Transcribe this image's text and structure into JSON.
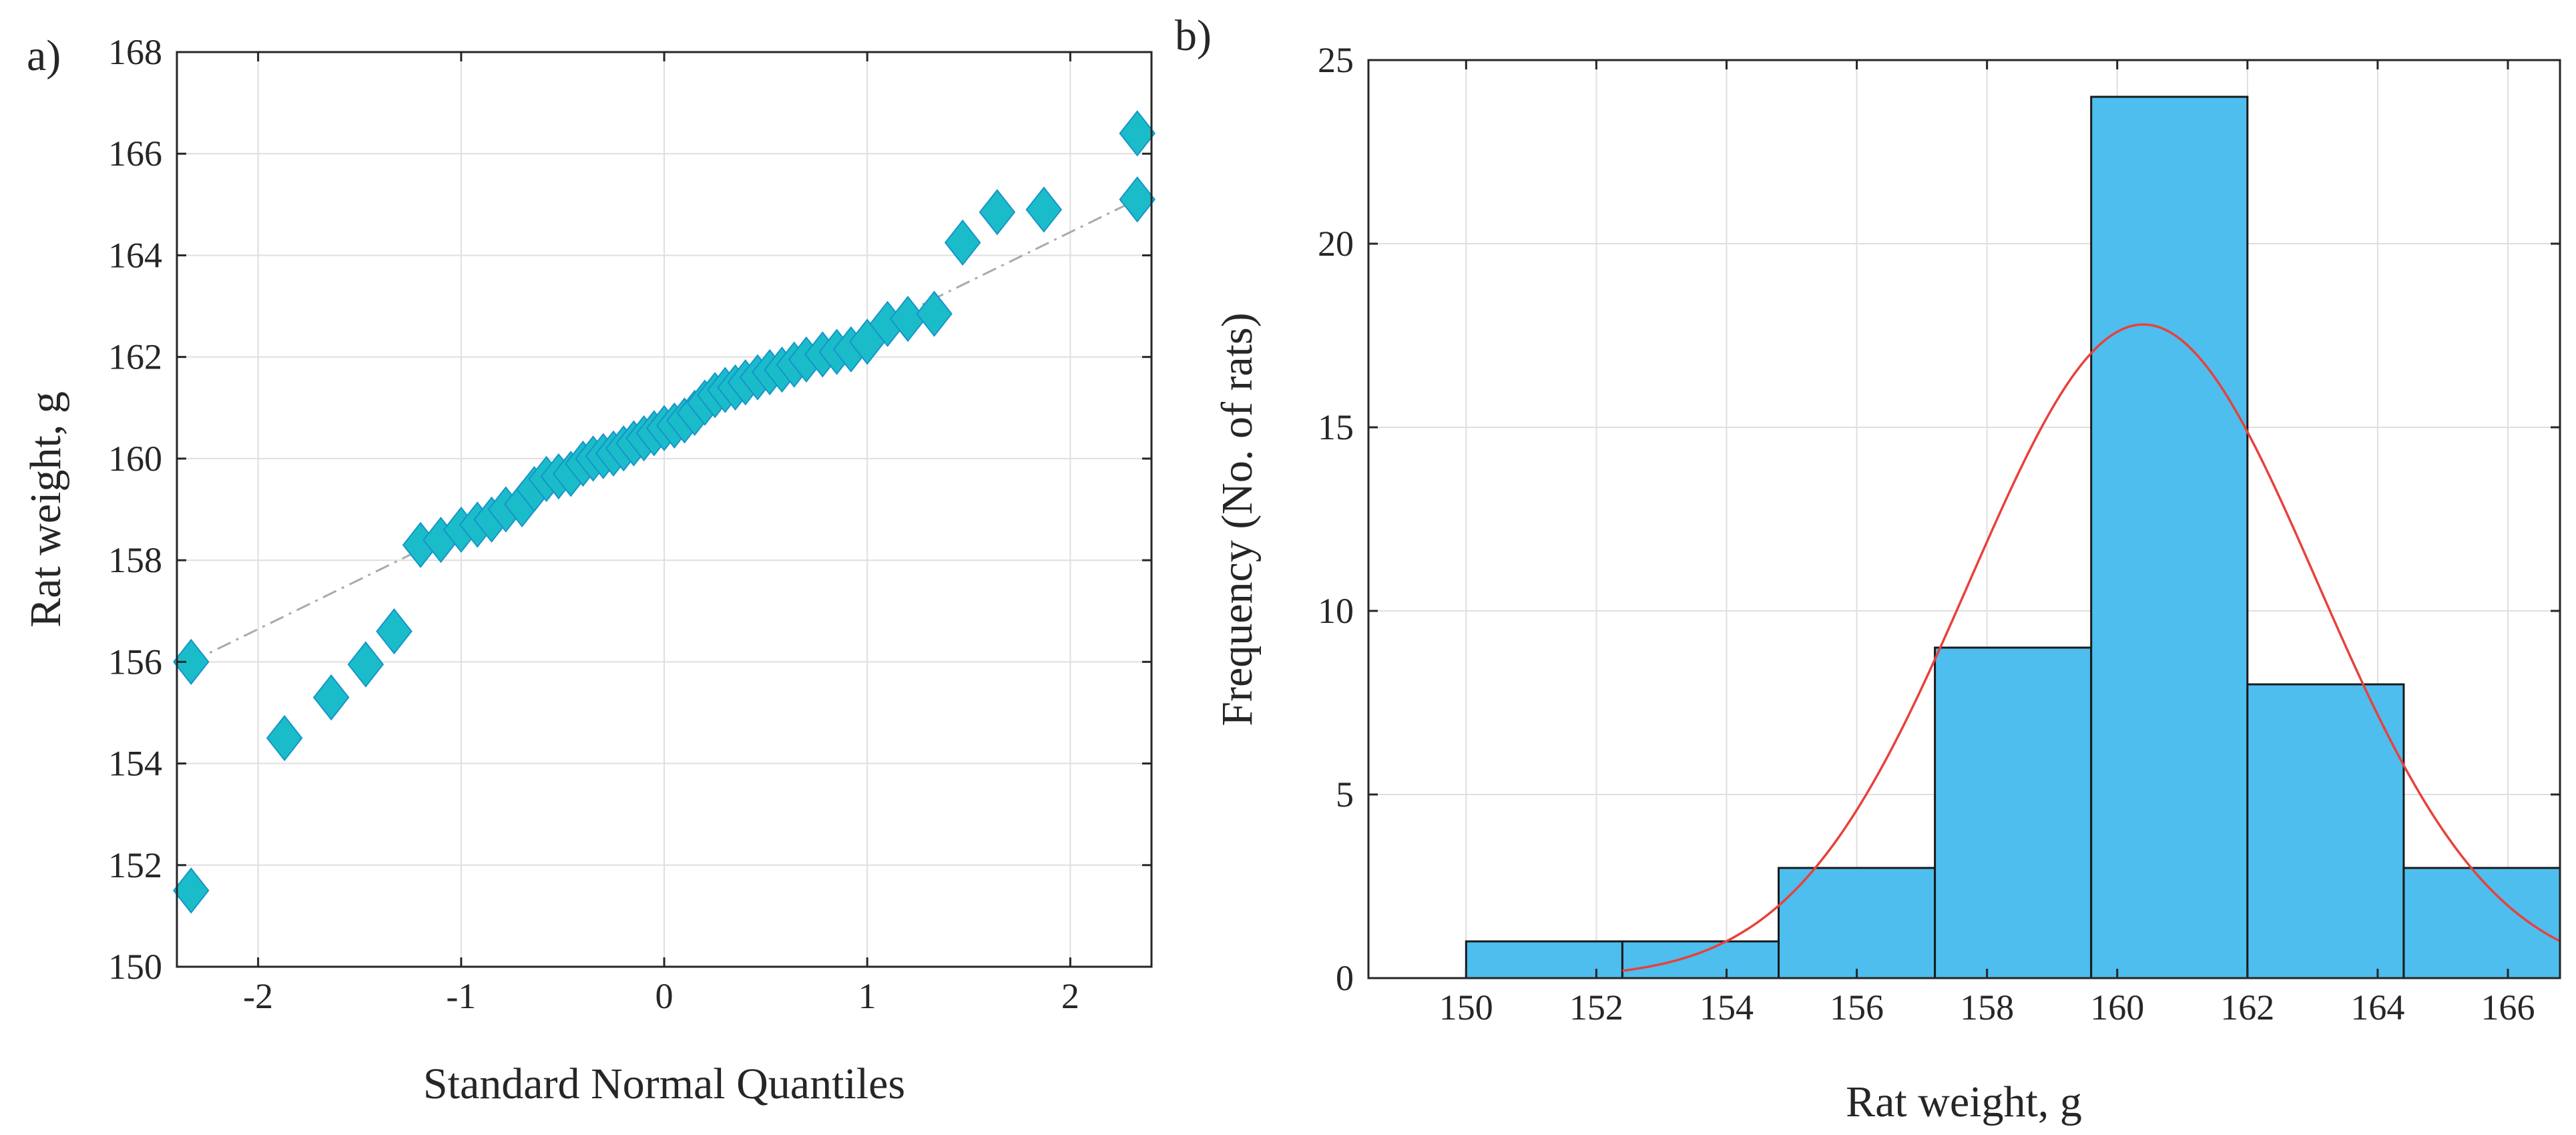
{
  "chart_data": [
    {
      "type": "scatter",
      "panel_label": "a)",
      "xlabel": "Standard Normal Quantiles",
      "ylabel": "Rat weight, g",
      "xlim": [
        -2.4,
        2.4
      ],
      "ylim": [
        150,
        168
      ],
      "xticks": [
        -2,
        -1,
        0,
        1,
        2
      ],
      "xtick_labels": [
        "-2",
        "-1",
        "0",
        "1",
        "2"
      ],
      "yticks": [
        150,
        152,
        154,
        156,
        158,
        160,
        162,
        164,
        166,
        168
      ],
      "ytick_labels": [
        "150",
        "152",
        "154",
        "156",
        "158",
        "160",
        "162",
        "164",
        "166",
        "168"
      ],
      "grid": true,
      "marker": "diamond",
      "marker_color": "#1ABCC9",
      "reference_line": {
        "x": [
          -2.33,
          2.33
        ],
        "y": [
          156.0,
          165.1
        ],
        "style": "dash-dot",
        "color": "#AAAAAA"
      },
      "points": {
        "x": [
          -2.33,
          -2.33,
          -1.87,
          -1.64,
          -1.47,
          -1.33,
          -1.2,
          -1.1,
          -1.0,
          -0.92,
          -0.85,
          -0.78,
          -0.7,
          -0.64,
          -0.58,
          -0.52,
          -0.46,
          -0.4,
          -0.35,
          -0.3,
          -0.25,
          -0.2,
          -0.15,
          -0.1,
          -0.05,
          0.0,
          0.05,
          0.1,
          0.15,
          0.2,
          0.25,
          0.3,
          0.35,
          0.4,
          0.46,
          0.52,
          0.58,
          0.64,
          0.7,
          0.78,
          0.85,
          0.92,
          1.0,
          1.1,
          1.2,
          1.33,
          1.47,
          1.64,
          1.87,
          2.33,
          2.33
        ],
        "y": [
          151.5,
          156.0,
          154.5,
          155.3,
          155.95,
          156.6,
          158.3,
          158.4,
          158.6,
          158.7,
          158.8,
          159.0,
          159.1,
          159.4,
          159.6,
          159.65,
          159.7,
          159.9,
          160.0,
          160.05,
          160.1,
          160.2,
          160.3,
          160.4,
          160.5,
          160.6,
          160.65,
          160.75,
          160.9,
          161.1,
          161.25,
          161.35,
          161.4,
          161.5,
          161.6,
          161.7,
          161.75,
          161.85,
          161.95,
          162.05,
          162.1,
          162.15,
          162.3,
          162.65,
          162.75,
          162.85,
          164.25,
          164.85,
          164.9,
          165.1,
          166.4
        ]
      }
    },
    {
      "type": "bar",
      "subtype": "histogram",
      "panel_label": "b)",
      "xlabel": "Rat weight, g",
      "ylabel": "Frequency (No. of rats)",
      "xlim": [
        148.5,
        166.8
      ],
      "ylim": [
        0,
        25
      ],
      "xticks": [
        150,
        152,
        154,
        156,
        158,
        160,
        162,
        164,
        166
      ],
      "xtick_labels": [
        "150",
        "152",
        "154",
        "156",
        "158",
        "160",
        "162",
        "164",
        "166"
      ],
      "yticks": [
        0,
        5,
        10,
        15,
        20,
        25
      ],
      "ytick_labels": [
        "0",
        "5",
        "10",
        "15",
        "20",
        "25"
      ],
      "grid": true,
      "bar_color": "#4DBEEE",
      "bin_edges": [
        150.0,
        152.4,
        154.8,
        157.2,
        159.6,
        162.0,
        164.4,
        166.8
      ],
      "values": [
        1,
        1,
        3,
        9,
        24,
        8,
        3
      ],
      "fit_curve": {
        "type": "normal",
        "mean": 160.4,
        "sd": 2.67,
        "peak": 17.8,
        "x_range": [
          152.4,
          166.8
        ],
        "color": "#E8413C"
      }
    }
  ]
}
